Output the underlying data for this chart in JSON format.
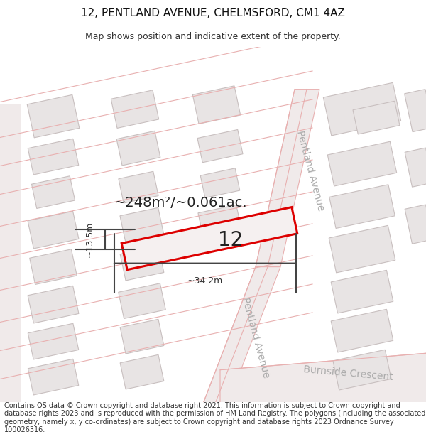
{
  "title": "12, PENTLAND AVENUE, CHELMSFORD, CM1 4AZ",
  "subtitle": "Map shows position and indicative extent of the property.",
  "footer": "Contains OS data © Crown copyright and database right 2021. This information is subject to Crown copyright and database rights 2023 and is reproduced with the permission of HM Land Registry. The polygons (including the associated geometry, namely x, y co-ordinates) are subject to Crown copyright and database rights 2023 Ordnance Survey 100026316.",
  "area_label": "~248m²/~0.061ac.",
  "width_label": "~34.2m",
  "height_label": "~13.5m",
  "property_number": "12",
  "bg_color": "#ffffff",
  "map_bg": "#f7f3f3",
  "building_fill": "#e8e4e4",
  "building_outline": "#c8bfbf",
  "road_line_color": "#e8b0b0",
  "highlight_color": "#dd0000",
  "street_label_color": "#aaaaaa",
  "annotation_color": "#404040",
  "title_fontsize": 11,
  "subtitle_fontsize": 9,
  "footer_fontsize": 7,
  "area_fontsize": 14,
  "property_num_fontsize": 20,
  "street_label_fontsize": 10
}
